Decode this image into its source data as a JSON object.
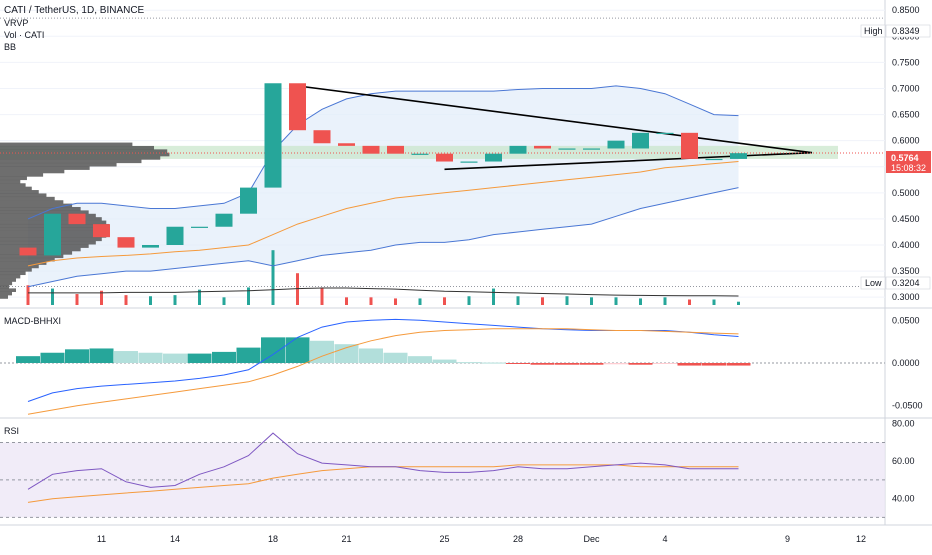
{
  "header": {
    "symbol": "CATI / TetherUS, 1D, BINANCE",
    "vrvp": "VRVP",
    "vol": "Vol · CATI",
    "bb": "BB",
    "macd": "MACD-BHHXI",
    "rsi": "RSI"
  },
  "markers": {
    "high_label": "High",
    "high_value": "0.8349",
    "low_label": "Low",
    "low_value": "0.3204",
    "price_value": "0.5764",
    "countdown": "15:08:32"
  },
  "colors": {
    "up": "#26a69a",
    "down": "#ef5350",
    "bb_line": "#4a77d4",
    "bb_fill": "#e3eefa",
    "ema": "#f59a3c",
    "macd_line": "#2962ff",
    "signal_line": "#f59a3c",
    "rsi_line": "#7e57c2",
    "rsi_ma": "#f59a3c",
    "rsi_band": "#ede7f6",
    "zone": "#c8e6c9",
    "price_tag": "#ef5350",
    "volume_profile": "#555555"
  },
  "chart_data": [
    {
      "type": "candlestick",
      "title": "CATI / TetherUS, 1D, BINANCE",
      "x": [
        "Nov 8",
        "Nov 9",
        "Nov 10",
        "Nov 11",
        "Nov 12",
        "Nov 13",
        "Nov 14",
        "Nov 15",
        "Nov 16",
        "Nov 17",
        "Nov 18",
        "Nov 19",
        "Nov 20",
        "Nov 21",
        "Nov 22",
        "Nov 23",
        "Nov 24",
        "Nov 25",
        "Nov 26",
        "Nov 27",
        "Nov 28",
        "Nov 29",
        "Nov 30",
        "Dec 1",
        "Dec 2",
        "Dec 3",
        "Dec 4",
        "Dec 5",
        "Dec 6",
        "Dec 7"
      ],
      "open": [
        0.395,
        0.38,
        0.46,
        0.44,
        0.415,
        0.395,
        0.4,
        0.435,
        0.435,
        0.46,
        0.51,
        0.71,
        0.62,
        0.595,
        0.59,
        0.59,
        0.575,
        0.575,
        0.56,
        0.56,
        0.575,
        0.59,
        0.585,
        0.585,
        0.585,
        0.585,
        0.615,
        0.615,
        0.565,
        0.565
      ],
      "high": 0.8349,
      "low": 0.3204,
      "close": [
        0.38,
        0.46,
        0.44,
        0.415,
        0.395,
        0.4,
        0.435,
        0.435,
        0.46,
        0.51,
        0.71,
        0.62,
        0.595,
        0.59,
        0.575,
        0.575,
        0.575,
        0.56,
        0.56,
        0.575,
        0.59,
        0.585,
        0.585,
        0.585,
        0.6,
        0.615,
        0.615,
        0.565,
        0.565,
        0.576
      ],
      "bb_upper": [
        0.45,
        0.47,
        0.48,
        0.48,
        0.475,
        0.47,
        0.47,
        0.475,
        0.48,
        0.5,
        0.58,
        0.63,
        0.66,
        0.68,
        0.69,
        0.695,
        0.695,
        0.695,
        0.695,
        0.695,
        0.698,
        0.7,
        0.7,
        0.7,
        0.705,
        0.7,
        0.69,
        0.67,
        0.65,
        0.648
      ],
      "bb_lower": [
        0.32,
        0.33,
        0.34,
        0.345,
        0.35,
        0.35,
        0.355,
        0.36,
        0.365,
        0.37,
        0.36,
        0.37,
        0.38,
        0.385,
        0.39,
        0.4,
        0.405,
        0.405,
        0.41,
        0.42,
        0.425,
        0.43,
        0.435,
        0.44,
        0.455,
        0.47,
        0.48,
        0.49,
        0.5,
        0.51
      ],
      "ema": [
        0.36,
        0.37,
        0.375,
        0.378,
        0.38,
        0.383,
        0.387,
        0.39,
        0.395,
        0.4,
        0.42,
        0.44,
        0.455,
        0.47,
        0.48,
        0.49,
        0.495,
        0.5,
        0.505,
        0.51,
        0.515,
        0.52,
        0.525,
        0.53,
        0.535,
        0.54,
        0.548,
        0.552,
        0.556,
        0.56
      ],
      "volume": [
        1.8,
        1.5,
        1.0,
        1.3,
        0.9,
        0.8,
        0.9,
        1.4,
        0.7,
        1.6,
        5.0,
        2.9,
        1.6,
        0.7,
        0.7,
        0.6,
        0.6,
        0.7,
        0.8,
        1.5,
        0.8,
        0.7,
        0.8,
        0.7,
        0.7,
        0.6,
        0.7,
        0.5,
        0.5,
        0.3
      ],
      "volume_ma": [
        1.1,
        1.1,
        1.1,
        1.1,
        1.15,
        1.15,
        1.15,
        1.2,
        1.25,
        1.3,
        1.4,
        1.5,
        1.55,
        1.55,
        1.5,
        1.45,
        1.35,
        1.25,
        1.2,
        1.15,
        1.1,
        1.05,
        1.0,
        0.95,
        0.9,
        0.88,
        0.86,
        0.85,
        0.84,
        0.82
      ],
      "trendline_upper": [
        {
          "x": "Nov 19",
          "y": 0.705
        },
        {
          "x": "Dec 10",
          "y": 0.577
        }
      ],
      "trendline_lower": [
        {
          "x": "Nov 25",
          "y": 0.545
        },
        {
          "x": "Dec 10",
          "y": 0.577
        }
      ],
      "zone": [
        0.565,
        0.59
      ],
      "last_price": 0.5764,
      "y_ticks": [
        "0.8500",
        "0.8000",
        "0.7500",
        "0.7000",
        "0.6500",
        "0.6000",
        "0.5500",
        "0.5000",
        "0.4500",
        "0.4000",
        "0.3500",
        "0.3000"
      ],
      "x_ticks": [
        "11",
        "14",
        "18",
        "21",
        "25",
        "28",
        "Dec",
        "4",
        "9",
        "12"
      ],
      "ylim": [
        0.285,
        0.86
      ]
    },
    {
      "type": "bar",
      "title": "MACD-BHHXI",
      "x": [
        "Nov 8",
        "Nov 9",
        "Nov 10",
        "Nov 11",
        "Nov 12",
        "Nov 13",
        "Nov 14",
        "Nov 15",
        "Nov 16",
        "Nov 17",
        "Nov 18",
        "Nov 19",
        "Nov 20",
        "Nov 21",
        "Nov 22",
        "Nov 23",
        "Nov 24",
        "Nov 25",
        "Nov 26",
        "Nov 27",
        "Nov 28",
        "Nov 29",
        "Nov 30",
        "Dec 1",
        "Dec 2",
        "Dec 3",
        "Dec 4",
        "Dec 5",
        "Dec 6",
        "Dec 7"
      ],
      "histogram": [
        0.008,
        0.012,
        0.016,
        0.017,
        0.014,
        0.012,
        0.011,
        0.011,
        0.013,
        0.018,
        0.03,
        0.03,
        0.026,
        0.022,
        0.017,
        0.012,
        0.008,
        0.004,
        0.001,
        0.0005,
        -0.0005,
        -0.002,
        -0.002,
        -0.002,
        -0.0015,
        -0.002,
        -0.001,
        -0.003,
        -0.003,
        -0.003
      ],
      "macd": [
        -0.045,
        -0.035,
        -0.03,
        -0.027,
        -0.025,
        -0.023,
        -0.021,
        -0.018,
        -0.014,
        -0.008,
        0.01,
        0.03,
        0.042,
        0.048,
        0.05,
        0.051,
        0.05,
        0.048,
        0.046,
        0.044,
        0.042,
        0.04,
        0.039,
        0.038,
        0.038,
        0.038,
        0.038,
        0.036,
        0.033,
        0.031
      ],
      "signal": [
        -0.06,
        -0.055,
        -0.05,
        -0.046,
        -0.042,
        -0.038,
        -0.034,
        -0.03,
        -0.026,
        -0.022,
        -0.014,
        -0.004,
        0.008,
        0.018,
        0.026,
        0.032,
        0.036,
        0.038,
        0.039,
        0.04,
        0.04,
        0.04,
        0.04,
        0.039,
        0.038,
        0.038,
        0.037,
        0.036,
        0.035,
        0.034
      ],
      "y_ticks": [
        "0.0500",
        "0.0000",
        "-0.0500"
      ],
      "ylim": [
        -0.062,
        0.062
      ]
    },
    {
      "type": "line",
      "title": "RSI",
      "x": [
        "Nov 8",
        "Nov 9",
        "Nov 10",
        "Nov 11",
        "Nov 12",
        "Nov 13",
        "Nov 14",
        "Nov 15",
        "Nov 16",
        "Nov 17",
        "Nov 18",
        "Nov 19",
        "Nov 20",
        "Nov 21",
        "Nov 22",
        "Nov 23",
        "Nov 24",
        "Nov 25",
        "Nov 26",
        "Nov 27",
        "Nov 28",
        "Nov 29",
        "Nov 30",
        "Dec 1",
        "Dec 2",
        "Dec 3",
        "Dec 4",
        "Dec 5",
        "Dec 6",
        "Dec 7"
      ],
      "rsi": [
        45,
        53,
        55,
        56,
        49,
        46,
        47,
        53,
        57,
        63,
        75,
        64,
        59,
        58,
        57,
        57,
        55,
        54,
        54,
        55,
        57,
        56,
        56,
        57,
        58,
        59,
        58,
        56,
        56,
        56
      ],
      "rsi_ma": [
        38,
        40,
        41,
        42,
        43,
        44,
        45,
        46,
        47,
        48,
        51,
        53,
        55,
        56,
        57,
        57,
        57,
        57,
        57,
        57,
        58,
        58,
        58,
        58,
        58,
        57,
        57,
        57,
        57,
        57
      ],
      "bands": [
        70,
        50,
        30
      ],
      "y_ticks": [
        "80.00",
        "60.00",
        "40.00"
      ],
      "ylim": [
        27,
        82
      ]
    }
  ]
}
